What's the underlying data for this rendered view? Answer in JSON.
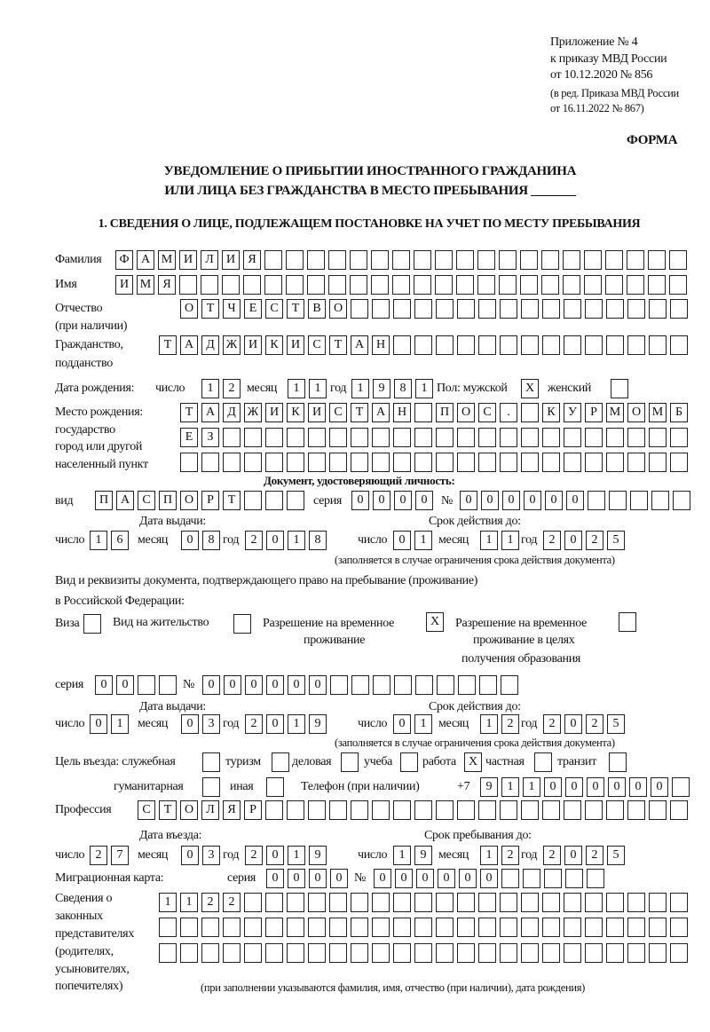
{
  "header": {
    "line1": "Приложение № 4",
    "line2": "к приказу МВД России",
    "line3": "от 10.12.2020 № 856",
    "line4": "(в ред. Приказа МВД России",
    "line5": "от 16.11.2022 № 867)",
    "forma": "ФОРМА"
  },
  "title": {
    "line1": "УВЕДОМЛЕНИЕ О ПРИБЫТИИ ИНОСТРАННОГО ГРАЖДАНИНА",
    "line2": "ИЛИ ЛИЦА БЕЗ ГРАЖДАНСТВА В МЕСТО ПРЕБЫВАНИЯ _______"
  },
  "section1": "1. СВЕДЕНИЯ О ЛИЦЕ, ПОДЛЕЖАЩЕМ ПОСТАНОВКЕ НА УЧЕТ ПО МЕСТУ ПРЕБЫВАНИЯ",
  "person": {
    "surname_label": "Фамилия",
    "surname": "ФАМИЛИЯ",
    "name_label": "Имя",
    "name": "ИМЯ",
    "patronymic_label1": "Отчество",
    "patronymic_label2": "(при наличии)",
    "patronymic": "ОТЧЕСТВО",
    "citizenship_label1": "Гражданство,",
    "citizenship_label2": "подданство",
    "citizenship": "ТАДЖИКИСТАН",
    "birth_label": "Дата рождения:",
    "day_label": "число",
    "month_label": "месяц",
    "year_label": "год",
    "birth_day": "12",
    "birth_month": "11",
    "birth_year": "1981",
    "sex_label": "Пол: мужской",
    "female_label": "женский",
    "male_mark": "X",
    "female_mark": "",
    "birthplace_label1": "Место рождения:",
    "birthplace_label2": "государство",
    "birthplace_label3": "город или другой",
    "birthplace_label4": "населенный пункт",
    "birthplace_row1": "ТАДЖИКИСТАН ПОС. КУРМОМБ",
    "birthplace_row2": "ЕЗ",
    "birthplace_row3": ""
  },
  "id_doc": {
    "heading": "Документ, удостоверяющий личность:",
    "kind_label": "вид",
    "kind": "ПАСПОРТ",
    "series_label": "серия",
    "series": "0000",
    "number_label": "№",
    "number": "000000",
    "issue_label": "Дата выдачи:",
    "valid_label": "Срок действия до:",
    "day_label": "число",
    "month_label": "месяц",
    "year_label": "год",
    "issue_day": "16",
    "issue_month": "08",
    "issue_year": "2018",
    "valid_day": "01",
    "valid_month": "11",
    "valid_year": "2025",
    "note": "(заполняется в случае ограничения срока действия документа)"
  },
  "stay_doc": {
    "heading1": "Вид и реквизиты документа, подтверждающего право на пребывание (проживание)",
    "heading2": "в Российской Федерации:",
    "visa_label": "Виза",
    "visa_mark": "",
    "residence_label": "Вид на жительство",
    "residence_mark": "",
    "trp_label1": "Разрешение на временное",
    "trp_label2": "проживание",
    "trp_mark": "X",
    "trp_edu_label1": "Разрешение на временное",
    "trp_edu_label2": "проживание в целях",
    "trp_edu_label3": "получения образования",
    "trp_edu_mark": "",
    "series_label": "серия",
    "series": "00",
    "number_label": "№",
    "number": "000000",
    "issue_label": "Дата выдачи:",
    "valid_label": "Срок действия до:",
    "day_label": "число",
    "month_label": "месяц",
    "year_label": "год",
    "issue_day": "01",
    "issue_month": "03",
    "issue_year": "2019",
    "valid_day": "01",
    "valid_month": "12",
    "valid_year": "2025",
    "note": "(заполняется в случае ограничения срока действия документа)"
  },
  "purpose": {
    "label": "Цель въезда: служебная",
    "service": "",
    "tourism_label": "туризм",
    "tourism": "",
    "business_label": "деловая",
    "business": "",
    "study_label": "учеба",
    "study": "",
    "work_label": "работа",
    "work": "X",
    "private_label": "частная",
    "private": "",
    "transit_label": "транзит",
    "transit": "",
    "humanitarian_label": "гуманитарная",
    "humanitarian": "",
    "other_label": "иная",
    "other": ""
  },
  "phone": {
    "label": "Телефон (при наличии)",
    "prefix": "+7",
    "value": "911000000"
  },
  "profession": {
    "label": "Профессия",
    "value": "СТОЛЯР"
  },
  "entry": {
    "entry_label": "Дата въезда:",
    "stay_label": "Срок пребывания до:",
    "day_label": "число",
    "month_label": "месяц",
    "year_label": "год",
    "entry_day": "27",
    "entry_month": "03",
    "entry_year": "2019",
    "stay_day": "19",
    "stay_month": "12",
    "stay_year": "2025"
  },
  "migration_card": {
    "label": "Миграционная карта:",
    "series_label": "серия",
    "series": "0000",
    "number_label": "№",
    "number": "000000"
  },
  "representatives": {
    "label1": "Сведения о",
    "label2": "законных",
    "label3": "представителях",
    "label4": "(родителях,",
    "label5": "усыновителях,",
    "label6": "попечителях)",
    "row1": "1122",
    "row2": "",
    "row3": "",
    "note": "(при заполнении указываются фамилия, имя, отчество (при наличии), дата рождения)"
  }
}
